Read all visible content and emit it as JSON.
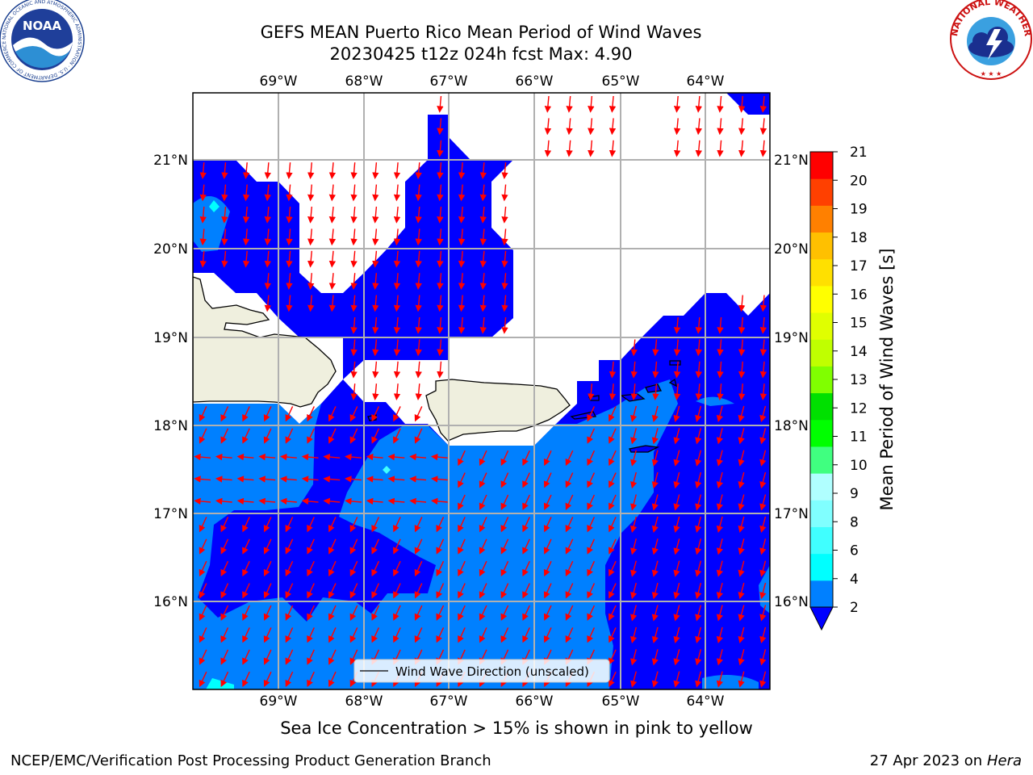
{
  "header": {
    "title_line1": "GEFS MEAN Puerto Rico Mean Period of Wind Waves",
    "title_line2": "20230425 t12z 024h fcst   Max: 4.90"
  },
  "map": {
    "lon_labels": [
      "69°W",
      "68°W",
      "67°W",
      "66°W",
      "65°W",
      "64°W"
    ],
    "lat_labels": [
      "21°N",
      "20°N",
      "19°N",
      "18°N",
      "17°N",
      "16°N"
    ],
    "legend_label": "Wind Wave Direction (unscaled)",
    "arrow_color": "#ff0000",
    "land_color": "#efefde",
    "field_colors": {
      "low": "#0000ff",
      "mid": "#0080ff",
      "high": "#00ffff"
    }
  },
  "colorbar": {
    "label": "Mean Period of Wind Waves [s]",
    "ticks": [
      "2",
      "4",
      "6",
      "8",
      "9",
      "10",
      "11",
      "12",
      "13",
      "14",
      "15",
      "16",
      "17",
      "18",
      "19",
      "20",
      "21"
    ],
    "colors": [
      "#0000ff",
      "#0080ff",
      "#00ffff",
      "#40ffff",
      "#80ffff",
      "#b0ffff",
      "#40ff80",
      "#00ff00",
      "#00e000",
      "#80ff00",
      "#c0ff00",
      "#e0ff00",
      "#ffff00",
      "#ffe000",
      "#ffc000",
      "#ff8000",
      "#ff4000",
      "#ff0000"
    ]
  },
  "logos": {
    "noaa_text": "NOAA",
    "noaa_ring": "NATIONAL OCEANIC AND ATMOSPHERIC ADMINISTRATION · U.S. DEPARTMENT OF COMMERCE",
    "nws_ring": "NATIONAL WEATHER SERVICE"
  },
  "footer": {
    "sea_ice_note": "Sea Ice Concentration > 15% is shown in pink to yellow",
    "producer": "NCEP/EMC/Verification Post Processing Product Generation Branch",
    "date": "27 Apr 2023 on",
    "machine": "Hera"
  }
}
